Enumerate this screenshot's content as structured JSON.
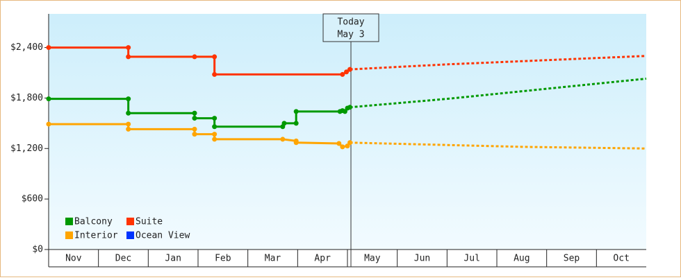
{
  "chart_data": {
    "type": "line",
    "categories": [
      "Nov",
      "Dec",
      "Jan",
      "Feb",
      "Mar",
      "Apr",
      "May",
      "Jun",
      "Jul",
      "Aug",
      "Sep",
      "Oct"
    ],
    "xlim": [
      0,
      12
    ],
    "ylim": [
      0,
      2800
    ],
    "yticks": [
      {
        "value": 0,
        "label": "$0"
      },
      {
        "value": 600,
        "label": "$600"
      },
      {
        "value": 1200,
        "label": "$1,200"
      },
      {
        "value": 1800,
        "label": "$1,800"
      },
      {
        "value": 2400,
        "label": "$2,400"
      }
    ],
    "today": {
      "x": 6.07,
      "label": "Today",
      "date": "May 3"
    },
    "series": [
      {
        "name": "Balcony",
        "color": "#009900",
        "x": [
          0,
          1.6,
          1.6,
          2.93,
          2.93,
          3.33,
          3.33,
          4.7,
          4.73,
          4.97,
          4.97,
          5.85,
          5.9,
          5.95,
          6.0,
          6.05
        ],
        "values": [
          1790,
          1790,
          1620,
          1620,
          1560,
          1560,
          1460,
          1460,
          1500,
          1500,
          1640,
          1640,
          1650,
          1640,
          1680,
          1690
        ],
        "forecast_x": [
          6.05,
          8.0,
          12
        ],
        "forecast_values": [
          1690,
          1790,
          2030
        ]
      },
      {
        "name": "Suite",
        "color": "#ff3300",
        "x": [
          0,
          1.6,
          1.6,
          2.93,
          3.33,
          3.33,
          5.9,
          5.98,
          6.05
        ],
        "values": [
          2400,
          2400,
          2290,
          2290,
          2290,
          2080,
          2080,
          2110,
          2140
        ],
        "forecast_x": [
          6.05,
          8.0,
          12
        ],
        "forecast_values": [
          2140,
          2200,
          2300
        ]
      },
      {
        "name": "Interior",
        "color": "#ffa500",
        "x": [
          0,
          1.6,
          1.6,
          2.93,
          2.93,
          3.33,
          3.33,
          4.7,
          4.97,
          4.97,
          5.83,
          5.9,
          6.0,
          6.05
        ],
        "values": [
          1490,
          1490,
          1430,
          1430,
          1370,
          1370,
          1310,
          1310,
          1290,
          1270,
          1260,
          1220,
          1230,
          1270
        ],
        "forecast_x": [
          6.05,
          9.5,
          12
        ],
        "forecast_values": [
          1270,
          1220,
          1200
        ]
      },
      {
        "name": "Ocean View",
        "color": "#0033ff",
        "x": [],
        "values": [],
        "forecast_x": [],
        "forecast_values": []
      }
    ]
  }
}
